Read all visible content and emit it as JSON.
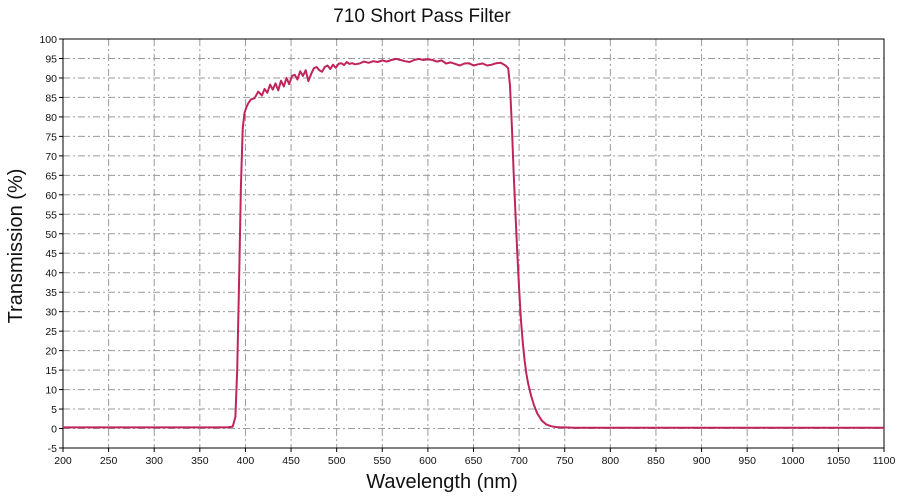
{
  "chart_data": {
    "type": "line",
    "title": "710 Short Pass Filter",
    "xlabel": "Wavelength (nm)",
    "ylabel": "Transmission (%)",
    "xlim": [
      200,
      1100
    ],
    "ylim": [
      -5,
      100
    ],
    "x_ticks": [
      200,
      250,
      300,
      350,
      400,
      450,
      500,
      550,
      600,
      650,
      700,
      750,
      800,
      850,
      900,
      950,
      1000,
      1050,
      1100
    ],
    "y_ticks": [
      -5,
      0,
      5,
      10,
      15,
      20,
      25,
      30,
      35,
      40,
      45,
      50,
      55,
      60,
      65,
      70,
      75,
      80,
      85,
      90,
      95,
      100
    ],
    "grid": true,
    "legend": "none",
    "series": [
      {
        "color": "#c0245c",
        "x": [
          200,
          250,
          300,
          350,
          380,
          386,
          389,
          391,
          393,
          395,
          397,
          399,
          401,
          403,
          406,
          410,
          414,
          418,
          421,
          424,
          427,
          430,
          433,
          436,
          439,
          442,
          445,
          448,
          451,
          454,
          457,
          460,
          463,
          466,
          469,
          472,
          475,
          478,
          481,
          484,
          487,
          490,
          493,
          496,
          499,
          502,
          505,
          508,
          511,
          514,
          517,
          520,
          525,
          530,
          535,
          540,
          545,
          550,
          555,
          560,
          565,
          570,
          575,
          580,
          585,
          590,
          595,
          600,
          605,
          610,
          615,
          620,
          625,
          630,
          635,
          640,
          645,
          650,
          655,
          660,
          665,
          670,
          675,
          680,
          685,
          688,
          690,
          692,
          694,
          696,
          698,
          700,
          702,
          704,
          706,
          708,
          710,
          713,
          716,
          720,
          725,
          730,
          735,
          740,
          745,
          750,
          760,
          800,
          900,
          1000,
          1100
        ],
        "y": [
          0.3,
          0.3,
          0.3,
          0.3,
          0.3,
          0.5,
          3,
          15,
          38,
          62,
          77,
          81,
          82.5,
          83.5,
          84.5,
          84.8,
          86.5,
          85.5,
          87.2,
          86.2,
          88.3,
          87,
          88.6,
          86.8,
          89.3,
          87.8,
          90,
          88.4,
          90.5,
          90.8,
          89.6,
          91.7,
          90.5,
          92,
          89.2,
          91,
          92.5,
          92.8,
          92,
          91.6,
          92.8,
          93.2,
          92.3,
          93.4,
          92.6,
          93.6,
          93.8,
          93.3,
          94.1,
          93.6,
          93.8,
          93.5,
          93.7,
          94.2,
          93.9,
          94.3,
          94.1,
          94.5,
          94.2,
          94.6,
          94.9,
          94.6,
          94.3,
          94.1,
          94.6,
          94.9,
          94.6,
          94.8,
          94.6,
          94.2,
          94.5,
          93.7,
          94,
          93.6,
          93.2,
          93.7,
          93.8,
          93.2,
          93.5,
          93.7,
          93.2,
          93.4,
          93.8,
          93.9,
          93.2,
          92.5,
          88,
          78,
          66,
          55,
          45,
          36,
          28,
          22,
          17.5,
          14,
          11.5,
          8.5,
          6.2,
          3.8,
          2,
          1,
          0.6,
          0.4,
          0.3,
          0.3,
          0.2,
          0.2,
          0.2,
          0.2,
          0.2
        ]
      }
    ]
  }
}
